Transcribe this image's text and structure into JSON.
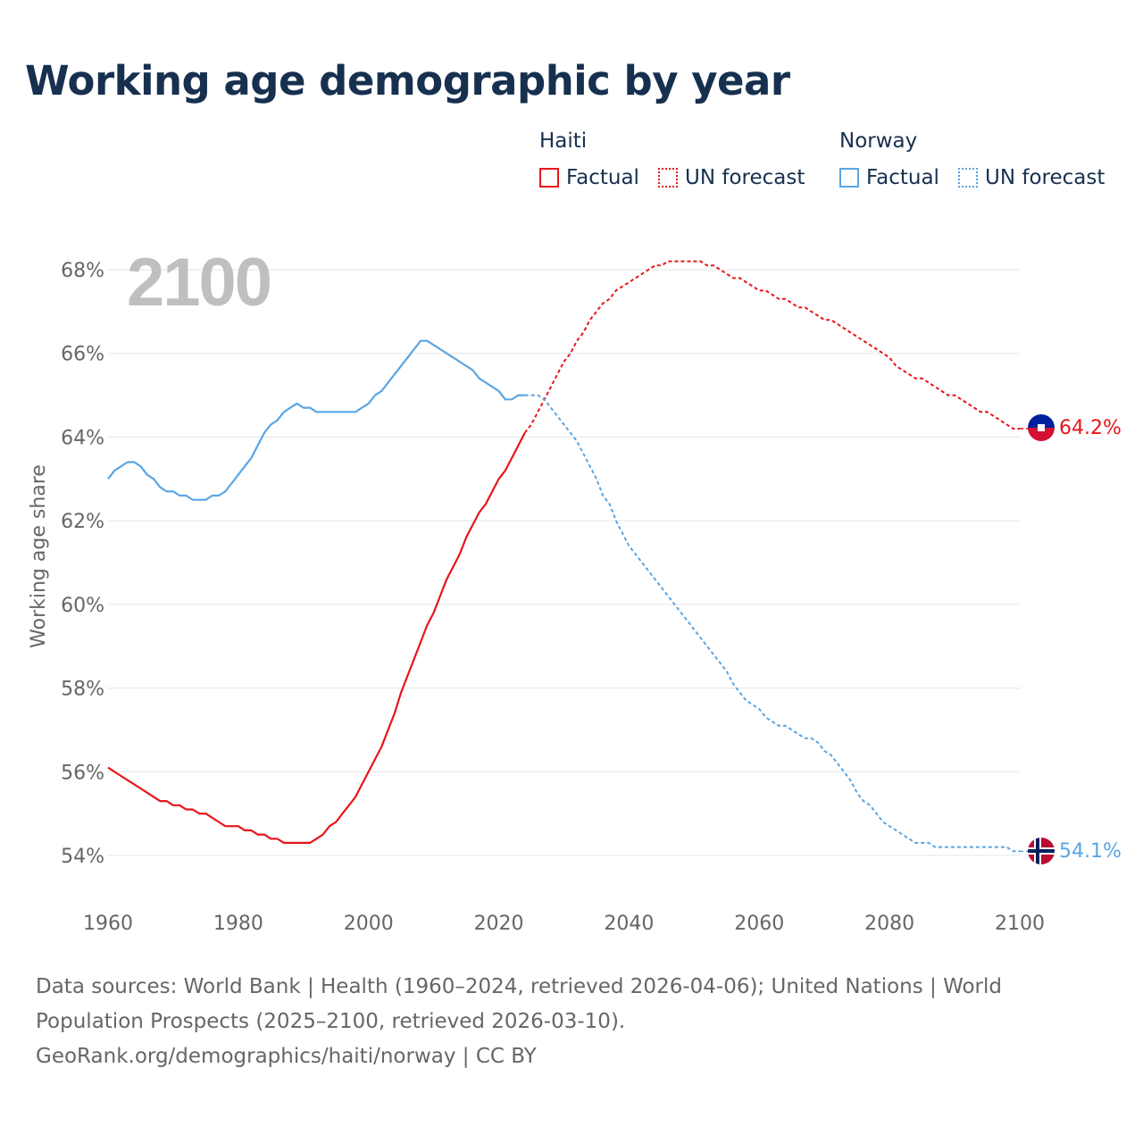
{
  "page": {
    "title": "Working age demographic by year",
    "source_line1": "Data sources: World Bank | Health (1960–2024, retrieved 2026-04-06); United Nations | World",
    "source_line2": "Population Prospects (2025–2100, retrieved 2026-03-10).",
    "source_line3": "GeoRank.org/demographics/haiti/norway | CC BY"
  },
  "legend": {
    "haiti": {
      "name": "Haiti",
      "factual": "Factual",
      "forecast": "UN forecast"
    },
    "norway": {
      "name": "Norway",
      "factual": "Factual",
      "forecast": "UN forecast"
    }
  },
  "colors": {
    "haiti": "#e8151b",
    "norway": "#5aa5e3",
    "text": "#17304f",
    "axis_text": "#666666",
    "year": "#bfbfbf",
    "grid": "#e5e5e5"
  },
  "chart_data": {
    "type": "line",
    "year_label": "2100",
    "ylabel": "Working age share",
    "xlim": [
      1960,
      2100
    ],
    "ylim": [
      53.5,
      68.4
    ],
    "xticks": [
      1960,
      1980,
      2000,
      2020,
      2040,
      2060,
      2080,
      2100
    ],
    "xtick_labels": [
      "1960",
      "1980",
      "2000",
      "2020",
      "2040",
      "2060",
      "2080",
      "2100"
    ],
    "yticks": [
      54,
      56,
      58,
      60,
      62,
      64,
      66,
      68
    ],
    "ytick_labels": [
      "54%",
      "56%",
      "58%",
      "60%",
      "62%",
      "64%",
      "66%",
      "68%"
    ],
    "series": [
      {
        "name": "Haiti",
        "color": "#e8151b",
        "end_label": "64.2%",
        "factual": [
          [
            1960,
            56.1
          ],
          [
            1961,
            56.0
          ],
          [
            1962,
            55.9
          ],
          [
            1963,
            55.8
          ],
          [
            1964,
            55.7
          ],
          [
            1965,
            55.6
          ],
          [
            1966,
            55.5
          ],
          [
            1967,
            55.4
          ],
          [
            1968,
            55.3
          ],
          [
            1969,
            55.3
          ],
          [
            1970,
            55.2
          ],
          [
            1971,
            55.2
          ],
          [
            1972,
            55.1
          ],
          [
            1973,
            55.1
          ],
          [
            1974,
            55.0
          ],
          [
            1975,
            55.0
          ],
          [
            1976,
            54.9
          ],
          [
            1977,
            54.8
          ],
          [
            1978,
            54.7
          ],
          [
            1979,
            54.7
          ],
          [
            1980,
            54.7
          ],
          [
            1981,
            54.6
          ],
          [
            1982,
            54.6
          ],
          [
            1983,
            54.5
          ],
          [
            1984,
            54.5
          ],
          [
            1985,
            54.4
          ],
          [
            1986,
            54.4
          ],
          [
            1987,
            54.3
          ],
          [
            1988,
            54.3
          ],
          [
            1989,
            54.3
          ],
          [
            1990,
            54.3
          ],
          [
            1991,
            54.3
          ],
          [
            1992,
            54.4
          ],
          [
            1993,
            54.5
          ],
          [
            1994,
            54.7
          ],
          [
            1995,
            54.8
          ],
          [
            1996,
            55.0
          ],
          [
            1997,
            55.2
          ],
          [
            1998,
            55.4
          ],
          [
            1999,
            55.7
          ],
          [
            2000,
            56.0
          ],
          [
            2001,
            56.3
          ],
          [
            2002,
            56.6
          ],
          [
            2003,
            57.0
          ],
          [
            2004,
            57.4
          ],
          [
            2005,
            57.9
          ],
          [
            2006,
            58.3
          ],
          [
            2007,
            58.7
          ],
          [
            2008,
            59.1
          ],
          [
            2009,
            59.5
          ],
          [
            2010,
            59.8
          ],
          [
            2011,
            60.2
          ],
          [
            2012,
            60.6
          ],
          [
            2013,
            60.9
          ],
          [
            2014,
            61.2
          ],
          [
            2015,
            61.6
          ],
          [
            2016,
            61.9
          ],
          [
            2017,
            62.2
          ],
          [
            2018,
            62.4
          ],
          [
            2019,
            62.7
          ],
          [
            2020,
            63.0
          ],
          [
            2021,
            63.2
          ],
          [
            2022,
            63.5
          ],
          [
            2023,
            63.8
          ],
          [
            2024,
            64.1
          ]
        ],
        "forecast": [
          [
            2024,
            64.1
          ],
          [
            2025,
            64.3
          ],
          [
            2026,
            64.6
          ],
          [
            2027,
            64.9
          ],
          [
            2028,
            65.2
          ],
          [
            2029,
            65.5
          ],
          [
            2030,
            65.8
          ],
          [
            2031,
            66.0
          ],
          [
            2032,
            66.3
          ],
          [
            2033,
            66.5
          ],
          [
            2034,
            66.8
          ],
          [
            2035,
            67.0
          ],
          [
            2036,
            67.2
          ],
          [
            2037,
            67.3
          ],
          [
            2038,
            67.5
          ],
          [
            2039,
            67.6
          ],
          [
            2040,
            67.7
          ],
          [
            2041,
            67.8
          ],
          [
            2042,
            67.9
          ],
          [
            2043,
            68.0
          ],
          [
            2044,
            68.1
          ],
          [
            2045,
            68.1
          ],
          [
            2046,
            68.2
          ],
          [
            2047,
            68.2
          ],
          [
            2048,
            68.2
          ],
          [
            2049,
            68.2
          ],
          [
            2050,
            68.2
          ],
          [
            2051,
            68.2
          ],
          [
            2052,
            68.1
          ],
          [
            2053,
            68.1
          ],
          [
            2054,
            68.0
          ],
          [
            2055,
            67.9
          ],
          [
            2056,
            67.8
          ],
          [
            2057,
            67.8
          ],
          [
            2058,
            67.7
          ],
          [
            2059,
            67.6
          ],
          [
            2060,
            67.5
          ],
          [
            2061,
            67.5
          ],
          [
            2062,
            67.4
          ],
          [
            2063,
            67.3
          ],
          [
            2064,
            67.3
          ],
          [
            2065,
            67.2
          ],
          [
            2066,
            67.1
          ],
          [
            2067,
            67.1
          ],
          [
            2068,
            67.0
          ],
          [
            2069,
            66.9
          ],
          [
            2070,
            66.8
          ],
          [
            2071,
            66.8
          ],
          [
            2072,
            66.7
          ],
          [
            2073,
            66.6
          ],
          [
            2074,
            66.5
          ],
          [
            2075,
            66.4
          ],
          [
            2076,
            66.3
          ],
          [
            2077,
            66.2
          ],
          [
            2078,
            66.1
          ],
          [
            2079,
            66.0
          ],
          [
            2080,
            65.9
          ],
          [
            2081,
            65.7
          ],
          [
            2082,
            65.6
          ],
          [
            2083,
            65.5
          ],
          [
            2084,
            65.4
          ],
          [
            2085,
            65.4
          ],
          [
            2086,
            65.3
          ],
          [
            2087,
            65.2
          ],
          [
            2088,
            65.1
          ],
          [
            2089,
            65.0
          ],
          [
            2090,
            65.0
          ],
          [
            2091,
            64.9
          ],
          [
            2092,
            64.8
          ],
          [
            2093,
            64.7
          ],
          [
            2094,
            64.6
          ],
          [
            2095,
            64.6
          ],
          [
            2096,
            64.5
          ],
          [
            2097,
            64.4
          ],
          [
            2098,
            64.3
          ],
          [
            2099,
            64.2
          ],
          [
            2100,
            64.2
          ]
        ]
      },
      {
        "name": "Norway",
        "color": "#5aa5e3",
        "end_label": "54.1%",
        "factual": [
          [
            1960,
            63.0
          ],
          [
            1961,
            63.2
          ],
          [
            1962,
            63.3
          ],
          [
            1963,
            63.4
          ],
          [
            1964,
            63.4
          ],
          [
            1965,
            63.3
          ],
          [
            1966,
            63.1
          ],
          [
            1967,
            63.0
          ],
          [
            1968,
            62.8
          ],
          [
            1969,
            62.7
          ],
          [
            1970,
            62.7
          ],
          [
            1971,
            62.6
          ],
          [
            1972,
            62.6
          ],
          [
            1973,
            62.5
          ],
          [
            1974,
            62.5
          ],
          [
            1975,
            62.5
          ],
          [
            1976,
            62.6
          ],
          [
            1977,
            62.6
          ],
          [
            1978,
            62.7
          ],
          [
            1979,
            62.9
          ],
          [
            1980,
            63.1
          ],
          [
            1981,
            63.3
          ],
          [
            1982,
            63.5
          ],
          [
            1983,
            63.8
          ],
          [
            1984,
            64.1
          ],
          [
            1985,
            64.3
          ],
          [
            1986,
            64.4
          ],
          [
            1987,
            64.6
          ],
          [
            1988,
            64.7
          ],
          [
            1989,
            64.8
          ],
          [
            1990,
            64.7
          ],
          [
            1991,
            64.7
          ],
          [
            1992,
            64.6
          ],
          [
            1993,
            64.6
          ],
          [
            1994,
            64.6
          ],
          [
            1995,
            64.6
          ],
          [
            1996,
            64.6
          ],
          [
            1997,
            64.6
          ],
          [
            1998,
            64.6
          ],
          [
            1999,
            64.7
          ],
          [
            2000,
            64.8
          ],
          [
            2001,
            65.0
          ],
          [
            2002,
            65.1
          ],
          [
            2003,
            65.3
          ],
          [
            2004,
            65.5
          ],
          [
            2005,
            65.7
          ],
          [
            2006,
            65.9
          ],
          [
            2007,
            66.1
          ],
          [
            2008,
            66.3
          ],
          [
            2009,
            66.3
          ],
          [
            2010,
            66.2
          ],
          [
            2011,
            66.1
          ],
          [
            2012,
            66.0
          ],
          [
            2013,
            65.9
          ],
          [
            2014,
            65.8
          ],
          [
            2015,
            65.7
          ],
          [
            2016,
            65.6
          ],
          [
            2017,
            65.4
          ],
          [
            2018,
            65.3
          ],
          [
            2019,
            65.2
          ],
          [
            2020,
            65.1
          ],
          [
            2021,
            64.9
          ],
          [
            2022,
            64.9
          ],
          [
            2023,
            65.0
          ],
          [
            2024,
            65.0
          ]
        ],
        "forecast": [
          [
            2024,
            65.0
          ],
          [
            2025,
            65.0
          ],
          [
            2026,
            65.0
          ],
          [
            2027,
            64.9
          ],
          [
            2028,
            64.7
          ],
          [
            2029,
            64.5
          ],
          [
            2030,
            64.3
          ],
          [
            2031,
            64.1
          ],
          [
            2032,
            63.9
          ],
          [
            2033,
            63.6
          ],
          [
            2034,
            63.3
          ],
          [
            2035,
            63.0
          ],
          [
            2036,
            62.6
          ],
          [
            2037,
            62.4
          ],
          [
            2038,
            62.0
          ],
          [
            2039,
            61.7
          ],
          [
            2040,
            61.4
          ],
          [
            2041,
            61.2
          ],
          [
            2042,
            61.0
          ],
          [
            2043,
            60.8
          ],
          [
            2044,
            60.6
          ],
          [
            2045,
            60.4
          ],
          [
            2046,
            60.2
          ],
          [
            2047,
            60.0
          ],
          [
            2048,
            59.8
          ],
          [
            2049,
            59.6
          ],
          [
            2050,
            59.4
          ],
          [
            2051,
            59.2
          ],
          [
            2052,
            59.0
          ],
          [
            2053,
            58.8
          ],
          [
            2054,
            58.6
          ],
          [
            2055,
            58.4
          ],
          [
            2056,
            58.1
          ],
          [
            2057,
            57.9
          ],
          [
            2058,
            57.7
          ],
          [
            2059,
            57.6
          ],
          [
            2060,
            57.5
          ],
          [
            2061,
            57.3
          ],
          [
            2062,
            57.2
          ],
          [
            2063,
            57.1
          ],
          [
            2064,
            57.1
          ],
          [
            2065,
            57.0
          ],
          [
            2066,
            56.9
          ],
          [
            2067,
            56.8
          ],
          [
            2068,
            56.8
          ],
          [
            2069,
            56.7
          ],
          [
            2070,
            56.5
          ],
          [
            2071,
            56.4
          ],
          [
            2072,
            56.2
          ],
          [
            2073,
            56.0
          ],
          [
            2074,
            55.8
          ],
          [
            2075,
            55.5
          ],
          [
            2076,
            55.3
          ],
          [
            2077,
            55.2
          ],
          [
            2078,
            55.0
          ],
          [
            2079,
            54.8
          ],
          [
            2080,
            54.7
          ],
          [
            2081,
            54.6
          ],
          [
            2082,
            54.5
          ],
          [
            2083,
            54.4
          ],
          [
            2084,
            54.3
          ],
          [
            2085,
            54.3
          ],
          [
            2086,
            54.3
          ],
          [
            2087,
            54.2
          ],
          [
            2088,
            54.2
          ],
          [
            2089,
            54.2
          ],
          [
            2090,
            54.2
          ],
          [
            2091,
            54.2
          ],
          [
            2092,
            54.2
          ],
          [
            2093,
            54.2
          ],
          [
            2094,
            54.2
          ],
          [
            2095,
            54.2
          ],
          [
            2096,
            54.2
          ],
          [
            2097,
            54.2
          ],
          [
            2098,
            54.2
          ],
          [
            2099,
            54.1
          ],
          [
            2100,
            54.1
          ]
        ]
      }
    ]
  }
}
